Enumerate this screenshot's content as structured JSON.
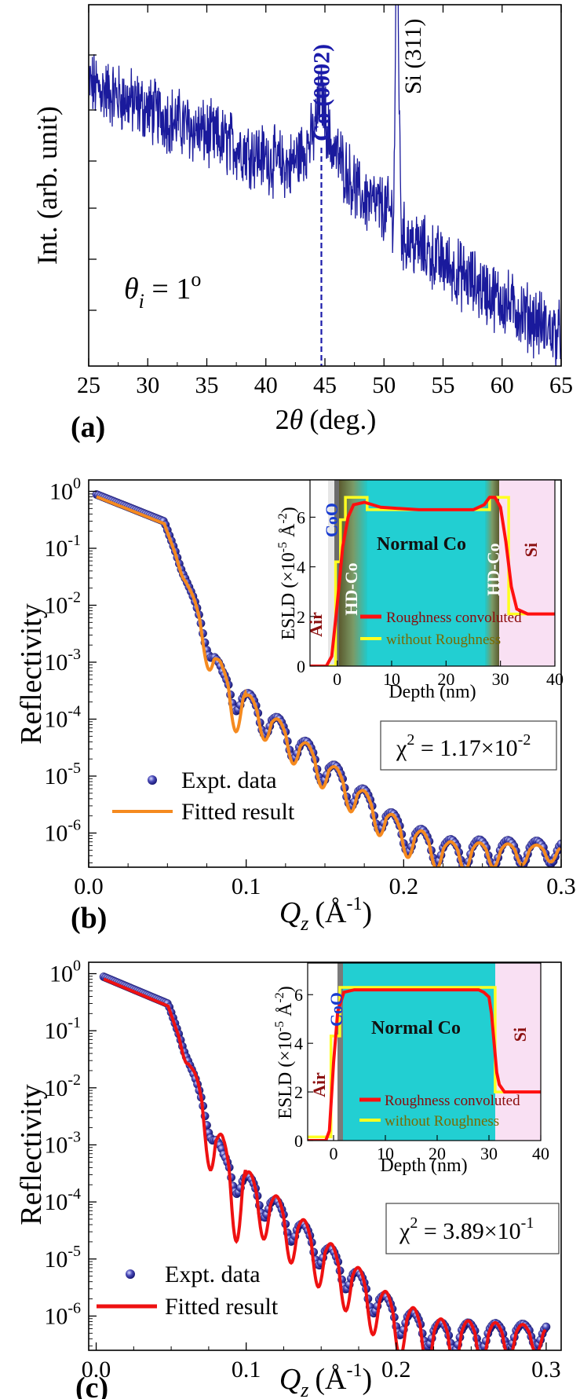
{
  "chart_data": [
    {
      "type": "line",
      "panel_label": "(a)",
      "xlabel_symbol": "θ",
      "xlabel_prefix": "2",
      "xlabel_unit": "(deg.)",
      "ylabel": "Int. (arb. unit)",
      "xlim": [
        25,
        65
      ],
      "x_ticks": [
        "25",
        "30",
        "35",
        "40",
        "45",
        "50",
        "55",
        "60",
        "65"
      ],
      "annotations": [
        {
          "text": "Co (0002)",
          "color": "#1a1aaa",
          "bold": true,
          "x": 44.7
        },
        {
          "text": "Si (311)",
          "color": "#000000",
          "bold": false,
          "x": 51.1
        }
      ],
      "incidence_label": {
        "symbol": "θ",
        "sub": "i",
        "text": " = 1",
        "sup": "o"
      },
      "line_color": "#1a1a9c",
      "series_trend": {
        "x": [
          25,
          35,
          42,
          44.7,
          48,
          50.8,
          51.1,
          51.5,
          58,
          65
        ],
        "y": [
          0.78,
          0.64,
          0.55,
          0.66,
          0.47,
          0.42,
          0.95,
          0.36,
          0.22,
          0.08
        ]
      }
    },
    {
      "type": "scatter",
      "panel_label": "(b)",
      "ylabel": "Reflectivity",
      "xlabel_symbol": "Q",
      "xlabel_sub": "z",
      "xlabel_unit": "(Å",
      "xlabel_unit_sup": "-1",
      "xlabel_tail": ")",
      "xlim": [
        0,
        0.3
      ],
      "ylim_log": [
        -6.6,
        0.2
      ],
      "x_ticks": [
        "0.0",
        "0.1",
        "0.2",
        "0.3"
      ],
      "y_ticks": [
        {
          "base": "10",
          "exp": "0"
        },
        {
          "base": "10",
          "exp": "-1"
        },
        {
          "base": "10",
          "exp": "-2"
        },
        {
          "base": "10",
          "exp": "-3"
        },
        {
          "base": "10",
          "exp": "-4"
        },
        {
          "base": "10",
          "exp": "-5"
        },
        {
          "base": "10",
          "exp": "-6"
        }
      ],
      "legend": [
        {
          "label": "Expt. data",
          "marker": "dot",
          "color": "#1c1c8c"
        },
        {
          "label": "Fitted result",
          "marker": "line",
          "color": "#f58a1f"
        }
      ],
      "chi_label": {
        "prefix": "χ",
        "sup": "2",
        "mid": " = 1.17×10",
        "exp": "-2"
      },
      "fit_color": "#f58a1f",
      "fringe_amplitude": 1.0,
      "inset": {
        "ylabel": "ESLD (×10",
        "ylabel_exp": "-5",
        "ylabel_unit": " Å",
        "ylabel_unit_exp": "-2",
        "ylabel_tail": ")",
        "xlabel": "Depth (nm)",
        "xlim": [
          -5,
          40
        ],
        "ylim": [
          0,
          7.5
        ],
        "x_ticks": [
          "0",
          "10",
          "20",
          "30",
          "40"
        ],
        "y_ticks": [
          "0",
          "2",
          "4",
          "6"
        ],
        "regions": [
          "CoO",
          "Normal Co",
          "HD-Co",
          "HD-Co",
          "Air",
          "Si"
        ],
        "legend": [
          {
            "label": "Roughness convoluted",
            "color": "#ff1010"
          },
          {
            "label": "without Roughness",
            "color": "#ffff20"
          }
        ],
        "red_profile": {
          "x": [
            -5,
            -2,
            -1,
            0,
            1,
            2,
            3,
            5,
            8,
            15,
            25,
            27,
            28,
            29,
            30,
            31,
            32,
            33,
            35,
            40
          ],
          "y": [
            0,
            0,
            0.4,
            2.5,
            4.8,
            6.0,
            6.5,
            6.6,
            6.4,
            6.3,
            6.3,
            6.5,
            6.8,
            6.8,
            6.4,
            5.0,
            3.2,
            2.3,
            2.1,
            2.1
          ]
        },
        "yellow_profile": {
          "x": [
            -5,
            -0.3,
            -0.3,
            0.6,
            0.6,
            1.5,
            1.5,
            5.5,
            5.5,
            28,
            28,
            31.5,
            31.5,
            40
          ],
          "y": [
            0,
            0,
            4.2,
            4.2,
            5.9,
            5.9,
            6.8,
            6.8,
            6.3,
            6.3,
            6.8,
            6.8,
            2.1,
            2.1
          ]
        }
      }
    },
    {
      "type": "scatter",
      "panel_label": "(c)",
      "ylabel": "Reflectivity",
      "xlabel_symbol": "Q",
      "xlabel_sub": "z",
      "xlabel_unit": "(Å",
      "xlabel_unit_sup": "-1",
      "xlabel_tail": ")",
      "xlim": [
        -0.005,
        0.31
      ],
      "ylim_log": [
        -6.6,
        0.2
      ],
      "x_ticks": [
        "0.0",
        "0.1",
        "0.2",
        "0.3"
      ],
      "y_ticks": [
        {
          "base": "10",
          "exp": "0"
        },
        {
          "base": "10",
          "exp": "-1"
        },
        {
          "base": "10",
          "exp": "-2"
        },
        {
          "base": "10",
          "exp": "-3"
        },
        {
          "base": "10",
          "exp": "-4"
        },
        {
          "base": "10",
          "exp": "-5"
        },
        {
          "base": "10",
          "exp": "-6"
        }
      ],
      "legend": [
        {
          "label": "Expt. data",
          "marker": "dot",
          "color": "#1c1c8c"
        },
        {
          "label": "Fitted result",
          "marker": "line",
          "color": "#ee1111"
        }
      ],
      "chi_label": {
        "prefix": "χ",
        "sup": "2",
        "mid": " = 3.89×10",
        "exp": "-1"
      },
      "fit_color": "#ee1111",
      "fringe_amplitude": 1.7,
      "inset": {
        "ylabel": "ESLD (×10",
        "ylabel_exp": "-5",
        "ylabel_unit": " Å",
        "ylabel_unit_exp": "-2",
        "ylabel_tail": ")",
        "xlabel": "Depth (nm)",
        "xlim": [
          -5,
          40
        ],
        "ylim": [
          0,
          7.3
        ],
        "x_ticks": [
          "0",
          "10",
          "20",
          "30",
          "40"
        ],
        "y_ticks": [
          "0",
          "2",
          "4",
          "6"
        ],
        "regions": [
          "CoO",
          "Normal Co",
          "Air",
          "Si"
        ],
        "legend": [
          {
            "label": "Roughness convoluted",
            "color": "#ff1010"
          },
          {
            "label": "without Roughness",
            "color": "#ffff20"
          }
        ],
        "red_profile": {
          "x": [
            -5,
            -1.5,
            -0.8,
            0,
            0.8,
            2,
            4,
            10,
            20,
            28,
            29,
            30,
            30.5,
            31,
            31.5,
            32,
            33,
            40
          ],
          "y": [
            0,
            0,
            0.4,
            3.2,
            5.3,
            6.1,
            6.2,
            6.2,
            6.2,
            6.2,
            6.1,
            5.9,
            5.2,
            4.0,
            2.8,
            2.3,
            2.0,
            2.0
          ]
        },
        "yellow_profile": {
          "x": [
            -5,
            -0.5,
            -0.5,
            1.2,
            1.2,
            31.2,
            31.2,
            40
          ],
          "y": [
            0.15,
            0.15,
            4.3,
            4.3,
            6.3,
            6.3,
            2.0,
            2.0
          ]
        }
      }
    }
  ]
}
